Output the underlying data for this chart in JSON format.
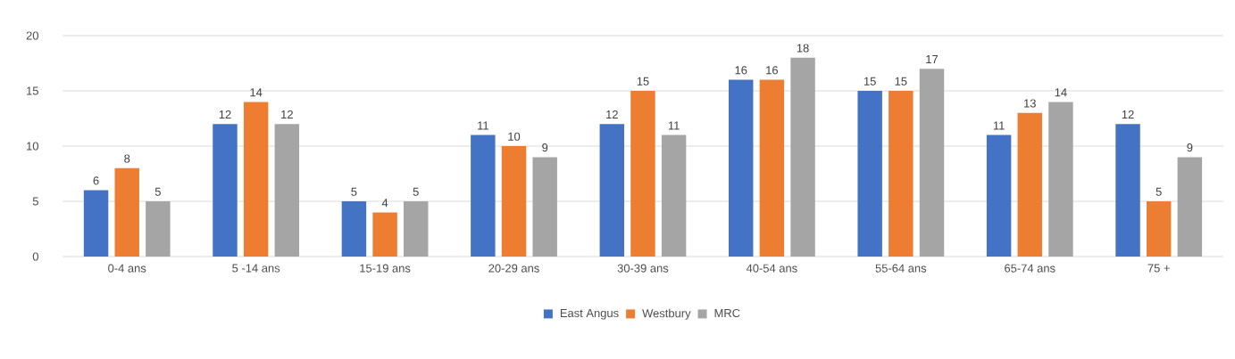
{
  "chart_data": {
    "type": "bar",
    "categories": [
      "0-4 ans",
      "5 -14 ans",
      "15-19 ans",
      "20-29 ans",
      "30-39 ans",
      "40-54 ans",
      "55-64 ans",
      "65-74 ans",
      "75 +"
    ],
    "series": [
      {
        "name": "East Angus",
        "color": "#4472c4",
        "values": [
          6,
          12,
          5,
          11,
          12,
          16,
          15,
          11,
          12
        ]
      },
      {
        "name": "Westbury",
        "color": "#ed7d31",
        "values": [
          8,
          14,
          4,
          10,
          15,
          16,
          15,
          13,
          5
        ]
      },
      {
        "name": "MRC",
        "color": "#a5a5a5",
        "values": [
          5,
          12,
          5,
          9,
          11,
          18,
          17,
          14,
          9
        ]
      }
    ],
    "ylim": [
      0,
      20
    ],
    "yticks": [
      0,
      5,
      10,
      15,
      20
    ],
    "grid": "y",
    "legend": "bottom",
    "data_labels": true
  }
}
